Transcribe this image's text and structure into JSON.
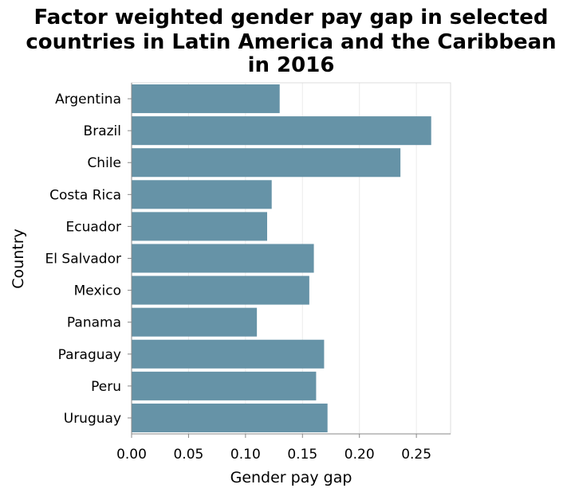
{
  "chart_data": {
    "type": "bar",
    "orientation": "horizontal",
    "title_lines": [
      "Factor weighted gender pay gap in selected",
      "countries in Latin America and the Caribbean",
      "in 2016"
    ],
    "xlabel": "Gender pay gap",
    "ylabel": "Country",
    "categories": [
      "Argentina",
      "Brazil",
      "Chile",
      "Costa Rica",
      "Ecuador",
      "El Salvador",
      "Mexico",
      "Panama",
      "Paraguay",
      "Peru",
      "Uruguay"
    ],
    "values": [
      0.13,
      0.263,
      0.236,
      0.123,
      0.119,
      0.16,
      0.156,
      0.11,
      0.169,
      0.162,
      0.172
    ],
    "xlim": [
      0,
      0.28
    ],
    "xticks": [
      0.0,
      0.05,
      0.1,
      0.15,
      0.2,
      0.25
    ],
    "xtick_labels": [
      "0.00",
      "0.05",
      "0.10",
      "0.15",
      "0.20",
      "0.25"
    ],
    "grid": true,
    "bar_color": "#6693a7"
  }
}
